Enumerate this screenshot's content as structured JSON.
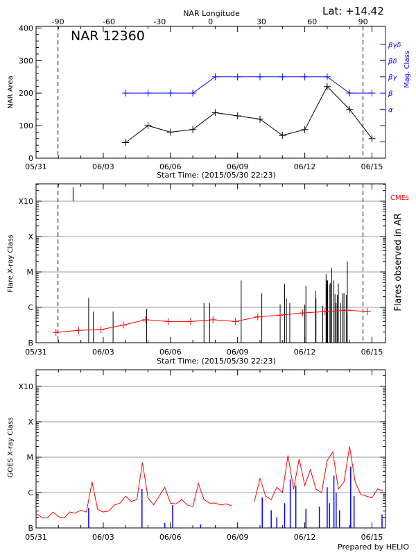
{
  "chart_data": [
    {
      "type": "line",
      "title": "NAR 12360",
      "latitude_label": "Lat: +14.42",
      "top_axis_label": "NAR Longitude",
      "top_ticks": [
        -90,
        -60,
        -30,
        0,
        30,
        60,
        90
      ],
      "xlabel": "Start Time: (2015/05/30 22:23)",
      "ylabel": "NAR Area",
      "y2label": "Mag. Class",
      "ylim": [
        0,
        405
      ],
      "yticks": [
        0,
        100,
        200,
        300,
        400
      ],
      "mag_classes": [
        "α",
        "β",
        "βγ",
        "βδ",
        "βγδ"
      ],
      "x_days": [
        4,
        5,
        6,
        7,
        8,
        9,
        10,
        11,
        12,
        13,
        14,
        15
      ],
      "series": [
        {
          "name": "NAR Area",
          "color": "#000000",
          "values": [
            48,
            100,
            80,
            88,
            140,
            130,
            120,
            70,
            88,
            220,
            150,
            60
          ]
        },
        {
          "name": "Mag. Class",
          "color": "#0000ff",
          "values": [
            "β",
            "β",
            "β",
            "β",
            "βγ",
            "βγ",
            "βγ",
            "βγ",
            "βγ",
            "βγ",
            "β",
            "β"
          ]
        }
      ],
      "dashed_lines_longitude": [
        -90,
        90
      ]
    },
    {
      "type": "bar",
      "xlabel": "Start Time: (2015/05/30 22:23)",
      "ylabel": "Flare X-ray Class",
      "y2label": "Flares observed in AR",
      "cme_label": "CMEs",
      "ylim_log10": [
        -7,
        -2.51
      ],
      "class_levels": [
        {
          "label": "B",
          "log": -7
        },
        {
          "label": "C",
          "log": -6
        },
        {
          "label": "M",
          "log": -5
        },
        {
          "label": "X",
          "log": -4
        },
        {
          "label": "X10",
          "log": -3
        }
      ],
      "cmes_days": [
        1.66
      ],
      "flares": [
        [
          2.35,
          -5.73
        ],
        [
          2.56,
          -6.12
        ],
        [
          3.44,
          -6.12
        ],
        [
          4.94,
          -6.04
        ],
        [
          7.5,
          -5.88
        ],
        [
          7.75,
          -5.88
        ],
        [
          9.16,
          -5.24
        ],
        [
          10.08,
          -5.6
        ],
        [
          10.9,
          -5.92
        ],
        [
          11.1,
          -5.33
        ],
        [
          11.18,
          -5.75
        ],
        [
          11.33,
          -5.88
        ],
        [
          12.0,
          -5.92
        ],
        [
          12.05,
          -5.39
        ],
        [
          12.48,
          -5.53
        ],
        [
          12.5,
          -5.75
        ],
        [
          12.8,
          -5.96
        ],
        [
          12.95,
          -5.06
        ],
        [
          12.98,
          -5.24
        ],
        [
          13.0,
          -5.4
        ],
        [
          13.02,
          -5.24
        ],
        [
          13.1,
          -5.35
        ],
        [
          13.15,
          -5.31
        ],
        [
          13.2,
          -4.88
        ],
        [
          13.3,
          -5.24
        ],
        [
          13.35,
          -5.63
        ],
        [
          13.4,
          -5.88
        ],
        [
          13.45,
          -5.65
        ],
        [
          13.5,
          -5.33
        ],
        [
          13.6,
          -5.88
        ],
        [
          13.7,
          -5.6
        ],
        [
          13.75,
          -5.6
        ],
        [
          13.85,
          -5.65
        ],
        [
          13.9,
          -4.7
        ]
      ],
      "background": {
        "color": "#ff0000",
        "x": [
          0.89,
          1.9,
          2.9,
          3.9,
          4.9,
          5.9,
          6.9,
          7.9,
          8.9,
          9.9,
          10.9,
          11.9,
          12.9,
          13.9,
          14.8
        ],
        "y": [
          -6.71,
          -6.65,
          -6.63,
          -6.5,
          -6.35,
          -6.4,
          -6.4,
          -6.35,
          -6.4,
          -6.27,
          -6.22,
          -6.16,
          -6.12,
          -6.08,
          -6.12
        ]
      }
    },
    {
      "type": "line",
      "ylabel": "GOES X-ray Class",
      "ylim_log10": [
        -7,
        -2.53
      ],
      "class_levels": [
        {
          "label": "B",
          "log": -7
        },
        {
          "label": "C",
          "log": -6
        },
        {
          "label": "M",
          "log": -5
        },
        {
          "label": "X",
          "log": -4
        },
        {
          "label": "X10",
          "log": -3
        }
      ],
      "goes_step_days": 0.25,
      "goes_color": "#ff0000",
      "goes_log_flux": [
        -6.6,
        -6.7,
        -6.72,
        -6.55,
        -6.68,
        -6.72,
        -6.55,
        -6.58,
        -6.5,
        -6.55,
        -5.7,
        -6.48,
        -6.55,
        -6.52,
        -6.35,
        -6.3,
        -6.1,
        -6.25,
        -6.2,
        -5.15,
        -6.15,
        -6.35,
        -6.1,
        -5.85,
        -6.3,
        -6.32,
        -6.2,
        -6.35,
        -6.4,
        -5.75,
        -6.2,
        -6.3,
        -6.3,
        -6.35,
        -6.32,
        -6.38,
        null,
        null,
        null,
        -6.25,
        -5.6,
        -6.1,
        -6.2,
        -5.85,
        -6.0,
        -4.95,
        -5.9,
        -5.05,
        -5.8,
        -5.35,
        -5.9,
        -6.0,
        -5.1,
        -4.85,
        -5.9,
        -5.7,
        -4.7,
        -5.7,
        -6.05,
        -6.1,
        -6.15,
        -5.9,
        -5.95
      ],
      "flare_color": "#0000ff",
      "flares": [
        [
          2.35,
          -6.43
        ],
        [
          4.73,
          -5.9
        ],
        [
          5.75,
          -6.86
        ],
        [
          6.1,
          -6.35
        ],
        [
          7.35,
          -6.9
        ],
        [
          10.1,
          -6.14
        ],
        [
          10.5,
          -6.5
        ],
        [
          10.75,
          -6.7
        ],
        [
          11.1,
          -6.3
        ],
        [
          11.35,
          -5.63
        ],
        [
          11.6,
          -5.8
        ],
        [
          12.05,
          -6.46
        ],
        [
          12.65,
          -6.4
        ],
        [
          13.0,
          -5.85
        ],
        [
          13.1,
          -6.3
        ],
        [
          13.3,
          -5.52
        ],
        [
          13.4,
          -6.0
        ],
        [
          13.55,
          -6.5
        ],
        [
          14.05,
          -5.27
        ],
        [
          14.2,
          -6.1
        ],
        [
          15.45,
          -6.62
        ]
      ],
      "footer": "Prepared by HELIO"
    }
  ],
  "date_ticks": [
    {
      "day": 0,
      "label": "05/31"
    },
    {
      "day": 3,
      "label": "06/03"
    },
    {
      "day": 6,
      "label": "06/06"
    },
    {
      "day": 9,
      "label": "06/09"
    },
    {
      "day": 12,
      "label": "06/12"
    },
    {
      "day": 15,
      "label": "06/15"
    }
  ]
}
